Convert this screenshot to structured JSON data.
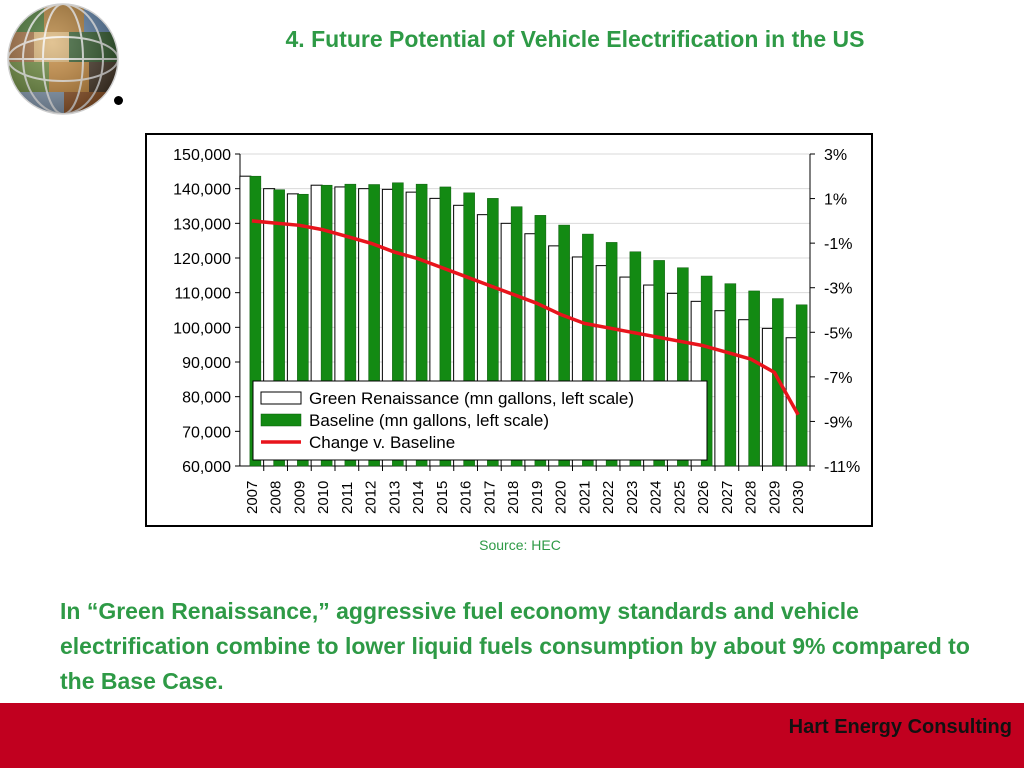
{
  "slide": {
    "title": "4. Future Potential of Vehicle Electrification in the US",
    "source": "Source: HEC",
    "body": "In “Green Renaissance,” aggressive fuel economy standards and vehicle electrification combine to lower liquid fuels consumption by about 9% compared to the Base Case.",
    "footer_brand": "Hart Energy Consulting"
  },
  "colors": {
    "title": "#2e9a46",
    "footer_bar": "#c1001f",
    "baseline_bar": "#138a13",
    "green_renaissance_bar": "#ffffff",
    "change_line": "#e8141c"
  },
  "icons": {
    "logo": "globe-collage-logo",
    "bullet": "bullet-dot"
  },
  "chart_data": {
    "type": "bar",
    "categories": [
      "2007",
      "2008",
      "2009",
      "2010",
      "2011",
      "2012",
      "2013",
      "2014",
      "2015",
      "2016",
      "2017",
      "2018",
      "2019",
      "2020",
      "2021",
      "2022",
      "2023",
      "2024",
      "2025",
      "2026",
      "2027",
      "2028",
      "2029",
      "2030"
    ],
    "series": [
      {
        "name": "Green Renaissance (mn gallons, left scale)",
        "kind": "bar",
        "axis": "left",
        "values": [
          143600,
          140000,
          138500,
          141000,
          140500,
          140000,
          139800,
          139000,
          137200,
          135200,
          132500,
          130000,
          127000,
          123500,
          120300,
          117800,
          114500,
          112200,
          109800,
          107500,
          104800,
          102200,
          99700,
          97000
        ]
      },
      {
        "name": "Baseline (mn gallons, left scale)",
        "kind": "bar",
        "axis": "left",
        "values": [
          143600,
          139700,
          138400,
          141000,
          141300,
          141200,
          141700,
          141300,
          140500,
          138800,
          137200,
          134800,
          132300,
          129500,
          126900,
          124500,
          121800,
          119300,
          117200,
          114800,
          112600,
          110500,
          108300,
          106500
        ]
      },
      {
        "name": "Change v. Baseline",
        "kind": "line",
        "axis": "right",
        "values": [
          0.0,
          -0.1,
          -0.2,
          -0.4,
          -0.7,
          -1.0,
          -1.4,
          -1.7,
          -2.1,
          -2.5,
          -2.9,
          -3.3,
          -3.7,
          -4.2,
          -4.6,
          -4.8,
          -5.0,
          -5.2,
          -5.4,
          -5.6,
          -5.9,
          -6.2,
          -6.8,
          -8.7
        ]
      }
    ],
    "y_left": {
      "min": 60000,
      "max": 150000,
      "step": 10000,
      "ticks": [
        "150,000",
        "140,000",
        "130,000",
        "120,000",
        "110,000",
        "100,000",
        "90,000",
        "80,000",
        "70,000",
        "60,000"
      ]
    },
    "y_right": {
      "min": -11,
      "max": 3,
      "step": 2,
      "ticks": [
        "3%",
        "1%",
        "-1%",
        "-3%",
        "-5%",
        "-7%",
        "-9%",
        "-11%"
      ]
    },
    "legend": {
      "placement": "bottom-left",
      "items": [
        {
          "label": "Green Renaissance (mn gallons, left scale)",
          "swatch": "hollow-bar"
        },
        {
          "label": "Baseline (mn gallons, left scale)",
          "swatch": "green-bar"
        },
        {
          "label": "Change v. Baseline",
          "swatch": "red-line"
        }
      ]
    },
    "grid": true
  }
}
